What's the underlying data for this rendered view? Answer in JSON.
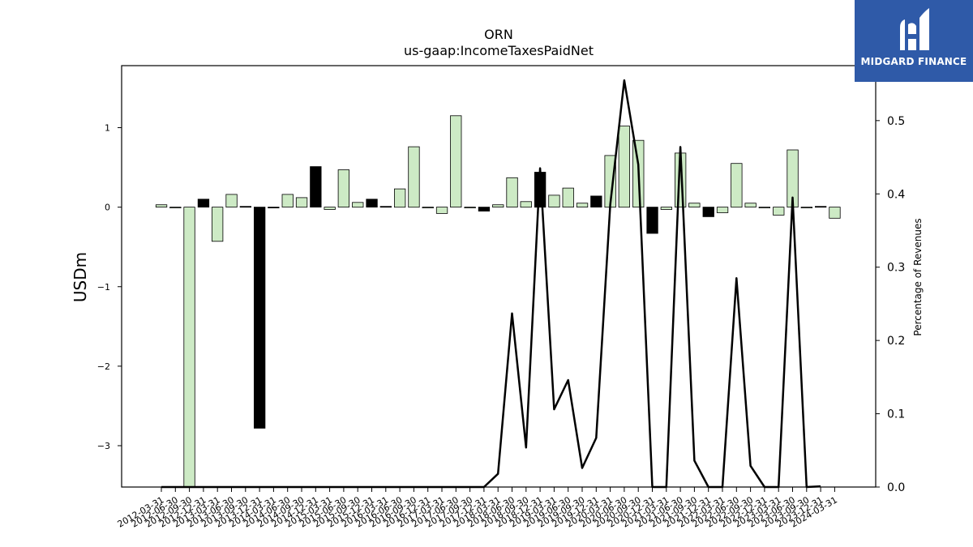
{
  "chart_data": {
    "type": "bar+line",
    "title": "ORN",
    "subtitle": "us-gaap:IncomeTaxesPaidNet",
    "ylabel": "USDm",
    "y2label": "Percentage of Revenues",
    "ylim": [
      -3.52,
      1.78
    ],
    "y2lim": [
      0.0,
      0.575
    ],
    "yticks": [
      -3,
      -2,
      -1,
      0,
      1
    ],
    "y2ticks": [
      0.0,
      0.1,
      0.2,
      0.3,
      0.4,
      0.5
    ],
    "x_tick_labels": [
      "2012-03-31",
      "2012-06-30",
      "2012-09-30",
      "2012-12-31",
      "2013-03-31",
      "2013-06-30",
      "2013-09-30",
      "2013-12-31",
      "2014-03-31",
      "2014-06-30",
      "2014-09-30",
      "2014-12-31",
      "2015-03-31",
      "2015-06-30",
      "2015-09-30",
      "2015-12-31",
      "2016-03-31",
      "2016-06-30",
      "2016-09-30",
      "2016-12-31",
      "2017-03-31",
      "2017-06-30",
      "2017-09-30",
      "2017-12-31",
      "2018-03-31",
      "2018-06-30",
      "2018-09-30",
      "2018-12-31",
      "2019-03-31",
      "2019-06-30",
      "2019-09-30",
      "2019-12-31",
      "2020-03-31",
      "2020-06-30",
      "2020-09-30",
      "2020-12-31",
      "2021-03-31",
      "2021-06-30",
      "2021-09-30",
      "2021-12-31",
      "2022-03-31",
      "2022-06-30",
      "2022-09-30",
      "2022-12-31",
      "2023-03-31",
      "2023-06-30",
      "2023-09-30",
      "2023-12-31",
      "2024-03-31"
    ],
    "bars": [
      {
        "value": 0.03,
        "style": "light"
      },
      {
        "value": 0.0,
        "style": "light"
      },
      {
        "value": -3.6,
        "style": "light"
      },
      {
        "value": 0.1,
        "style": "dark"
      },
      {
        "value": -0.43,
        "style": "light"
      },
      {
        "value": 0.16,
        "style": "light"
      },
      {
        "value": 0.01,
        "style": "dark"
      },
      {
        "value": -2.78,
        "style": "dark"
      },
      {
        "value": -0.01,
        "style": "dark"
      },
      {
        "value": 0.16,
        "style": "light"
      },
      {
        "value": 0.12,
        "style": "light"
      },
      {
        "value": 0.51,
        "style": "dark"
      },
      {
        "value": -0.03,
        "style": "light"
      },
      {
        "value": 0.47,
        "style": "light"
      },
      {
        "value": 0.06,
        "style": "light"
      },
      {
        "value": 0.1,
        "style": "dark"
      },
      {
        "value": 0.01,
        "style": "dark"
      },
      {
        "value": 0.23,
        "style": "light"
      },
      {
        "value": 0.76,
        "style": "light"
      },
      {
        "value": 0.0,
        "style": "light"
      },
      {
        "value": -0.08,
        "style": "light"
      },
      {
        "value": 1.15,
        "style": "light"
      },
      {
        "value": 0.0,
        "style": "light"
      },
      {
        "value": -0.05,
        "style": "dark"
      },
      {
        "value": 0.03,
        "style": "light"
      },
      {
        "value": 0.37,
        "style": "light"
      },
      {
        "value": 0.07,
        "style": "light"
      },
      {
        "value": 0.44,
        "style": "dark"
      },
      {
        "value": 0.15,
        "style": "light"
      },
      {
        "value": 0.24,
        "style": "light"
      },
      {
        "value": 0.05,
        "style": "light"
      },
      {
        "value": 0.14,
        "style": "dark"
      },
      {
        "value": 0.65,
        "style": "light"
      },
      {
        "value": 1.02,
        "style": "light"
      },
      {
        "value": 0.84,
        "style": "light"
      },
      {
        "value": -0.33,
        "style": "dark"
      },
      {
        "value": -0.03,
        "style": "light"
      },
      {
        "value": 0.68,
        "style": "light"
      },
      {
        "value": 0.05,
        "style": "light"
      },
      {
        "value": -0.12,
        "style": "dark"
      },
      {
        "value": -0.07,
        "style": "light"
      },
      {
        "value": 0.55,
        "style": "light"
      },
      {
        "value": 0.05,
        "style": "light"
      },
      {
        "value": 0.0,
        "style": "light"
      },
      {
        "value": -0.1,
        "style": "light"
      },
      {
        "value": 0.72,
        "style": "light"
      },
      {
        "value": 0.0,
        "style": "light"
      },
      {
        "value": 0.01,
        "style": "dark"
      },
      {
        "value": -0.14,
        "style": "light"
      }
    ],
    "line": [
      0,
      0,
      0,
      0,
      0,
      0,
      0,
      0,
      0,
      0,
      0,
      0,
      0,
      0,
      0,
      0,
      0,
      0,
      0,
      0,
      0,
      0,
      0,
      0,
      0.018,
      0.237,
      0.054,
      0.435,
      0.106,
      0.146,
      0.026,
      0.067,
      0.385,
      0.555,
      0.44,
      0,
      0,
      0.464,
      0.036,
      0,
      0,
      0.285,
      0.029,
      0,
      0,
      0.395,
      0,
      0.001,
      null
    ],
    "colors": {
      "light": "#cdeac5",
      "dark": "#000000",
      "line": "#000000"
    }
  },
  "logo": {
    "text": "MIDGARD FINANCE",
    "icon": "midgard-logo-icon",
    "bg": "#2f5aa8"
  }
}
